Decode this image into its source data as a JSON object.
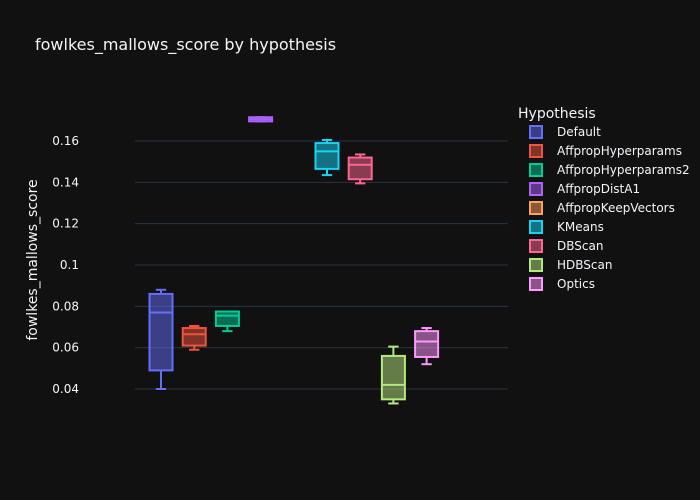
{
  "chart_data": {
    "type": "box",
    "title": "fowlkes_mallows_score by hypothesis",
    "xlabel": "",
    "ylabel": "fowlkes_mallows_score",
    "yticks": [
      "0.04",
      "0.06",
      "0.08",
      "0.1",
      "0.12",
      "0.14",
      "0.16"
    ],
    "ylim": [
      0.0,
      0.185
    ],
    "grid": true,
    "legend": {
      "title": "Hypothesis",
      "position": "right"
    },
    "series": [
      {
        "name": "Default",
        "color": "#636efa",
        "min": 0.04,
        "q1": 0.049,
        "median": 0.077,
        "q3": 0.086,
        "max": 0.088
      },
      {
        "name": "AffpropHyperparams",
        "color": "#ef553b",
        "min": 0.059,
        "q1": 0.061,
        "median": 0.0665,
        "q3": 0.0695,
        "max": 0.0705
      },
      {
        "name": "AffpropHyperparams2",
        "color": "#00cc96",
        "min": 0.068,
        "q1": 0.0705,
        "median": 0.0755,
        "q3": 0.0775,
        "max": 0.0775
      },
      {
        "name": "AffpropDistA1",
        "color": "#ab63fa",
        "min": 0.1695,
        "q1": 0.1695,
        "median": 0.1705,
        "q3": 0.1715,
        "max": 0.1715
      },
      {
        "name": "AffpropKeepVectors",
        "color": "#ffa15a",
        "min": null,
        "q1": null,
        "median": null,
        "q3": null,
        "max": null
      },
      {
        "name": "KMeans",
        "color": "#19d3f3",
        "min": 0.1435,
        "q1": 0.1465,
        "median": 0.155,
        "q3": 0.159,
        "max": 0.1605
      },
      {
        "name": "DBScan",
        "color": "#ff6692",
        "min": 0.1395,
        "q1": 0.1415,
        "median": 0.1485,
        "q3": 0.152,
        "max": 0.1535
      },
      {
        "name": "HDBScan",
        "color": "#b6e880",
        "min": 0.033,
        "q1": 0.035,
        "median": 0.042,
        "q3": 0.056,
        "max": 0.0605
      },
      {
        "name": "Optics",
        "color": "#ff97ff",
        "min": 0.052,
        "q1": 0.0555,
        "median": 0.063,
        "q3": 0.068,
        "max": 0.0695
      }
    ]
  }
}
